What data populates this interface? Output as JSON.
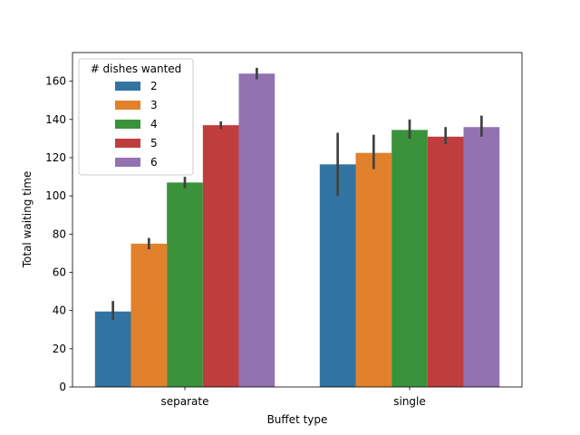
{
  "chart_data": {
    "type": "bar",
    "xlabel": "Buffet type",
    "ylabel": "Total waiting time",
    "categories": [
      "separate",
      "single"
    ],
    "ylim": [
      0,
      175
    ],
    "yticks": [
      0,
      20,
      40,
      60,
      80,
      100,
      120,
      140,
      160
    ],
    "legend": {
      "title": "# dishes wanted",
      "placement": "top-left"
    },
    "series": [
      {
        "name": "2",
        "color": "#3274a1",
        "values": [
          39.5,
          116.5
        ],
        "ci": [
          [
            35,
            45
          ],
          [
            100,
            133
          ]
        ]
      },
      {
        "name": "3",
        "color": "#e1812c",
        "values": [
          75,
          122.5
        ],
        "ci": [
          [
            72,
            78
          ],
          [
            114,
            132
          ]
        ]
      },
      {
        "name": "4",
        "color": "#3a923a",
        "values": [
          107,
          134.5
        ],
        "ci": [
          [
            104,
            110
          ],
          [
            130,
            140
          ]
        ]
      },
      {
        "name": "5",
        "color": "#c03d3e",
        "values": [
          137,
          131
        ],
        "ci": [
          [
            135,
            139
          ],
          [
            127,
            136
          ]
        ]
      },
      {
        "name": "6",
        "color": "#9372b2",
        "values": [
          164,
          136
        ],
        "ci": [
          [
            161,
            167
          ],
          [
            131,
            142
          ]
        ]
      }
    ]
  }
}
